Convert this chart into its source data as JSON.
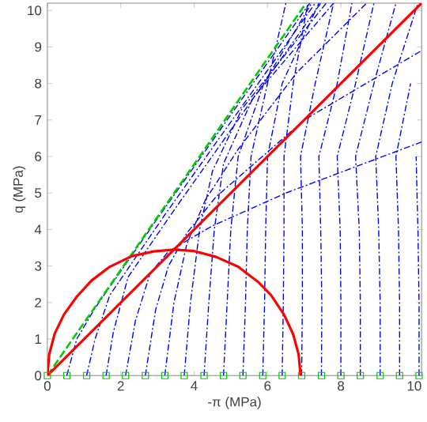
{
  "chart_data": {
    "type": "line",
    "xlabel": "-π (MPa)",
    "ylabel": "q (MPa)",
    "xlim": [
      0,
      10.2
    ],
    "ylim": [
      0,
      10.2
    ],
    "xticks": [
      0,
      2,
      4,
      6,
      8,
      10
    ],
    "yticks": [
      0,
      1,
      2,
      3,
      4,
      5,
      6,
      7,
      8,
      9,
      10
    ],
    "series": [
      {
        "color": "#0000ff",
        "line_style": "dashdot",
        "x": [
          0.53,
          0.8,
          1.3,
          3.0,
          7.15
        ],
        "values": [
          0,
          1.0,
          1.85,
          4.3,
          10.2
        ]
      },
      {
        "color": "#0000ff",
        "line_style": "dashdot",
        "x": [
          1.07,
          1.3,
          1.7,
          3.2,
          7.3
        ],
        "values": [
          0,
          1.0,
          2.2,
          4.4,
          10.2
        ]
      },
      {
        "color": "#0000ff",
        "line_style": "dashdot",
        "x": [
          1.6,
          1.8,
          2.2,
          3.5,
          7.45
        ],
        "values": [
          0,
          1.2,
          2.7,
          4.6,
          10.2
        ]
      },
      {
        "color": "#0000ff",
        "line_style": "dashdot",
        "x": [
          2.13,
          2.4,
          2.8,
          3.3,
          4.5,
          6.5,
          10.2
        ],
        "values": [
          0,
          1.5,
          2.8,
          3.4,
          4.1,
          5.0,
          6.4
        ]
      },
      {
        "color": "#0000ff",
        "line_style": "dashdot",
        "x": [
          2.67,
          2.95,
          3.3,
          3.8,
          4.6,
          7.0,
          10.2
        ],
        "values": [
          0,
          1.8,
          3.0,
          3.9,
          4.9,
          7.0,
          8.9
        ]
      },
      {
        "color": "#0000ff",
        "line_style": "dashdot",
        "x": [
          3.2,
          3.45,
          3.8,
          4.3,
          5.2,
          6.8,
          8.7
        ],
        "values": [
          0,
          2.0,
          3.6,
          4.8,
          6.2,
          8.3,
          10.2
        ]
      },
      {
        "color": "#0000ff",
        "line_style": "dashdot",
        "x": [
          3.73,
          3.9,
          4.15,
          4.5,
          5.3,
          7.6
        ],
        "values": [
          0,
          2.0,
          4.0,
          5.6,
          7.3,
          10.2
        ]
      },
      {
        "color": "#0000ff",
        "line_style": "dashdot",
        "x": [
          4.27,
          4.4,
          4.55,
          4.8,
          5.6,
          7.8
        ],
        "values": [
          0,
          2.0,
          4.0,
          5.8,
          7.6,
          10.2
        ]
      },
      {
        "color": "#0000ff",
        "line_style": "dashdot",
        "x": [
          4.8,
          4.9,
          5.0,
          5.2,
          5.9,
          7.2
        ],
        "values": [
          0,
          2.0,
          4.0,
          6.0,
          8.0,
          10.2
        ]
      },
      {
        "color": "#0000ff",
        "line_style": "dashdot",
        "x": [
          5.33,
          5.4,
          5.45,
          5.55,
          6.0,
          6.5
        ],
        "values": [
          0,
          2.0,
          4.0,
          6.0,
          8.0,
          10.2
        ]
      },
      {
        "color": "#0000ff",
        "line_style": "dashdot",
        "x": [
          5.87,
          5.92,
          5.95,
          6.0,
          6.4,
          7.4
        ],
        "values": [
          0,
          2.0,
          4.0,
          6.0,
          8.0,
          10.2
        ]
      },
      {
        "color": "#0000ff",
        "line_style": "dashdot",
        "x": [
          6.4,
          6.43,
          6.45,
          6.45,
          6.7,
          7.1
        ],
        "values": [
          0,
          2.0,
          4.0,
          6.0,
          8.0,
          10.2
        ]
      },
      {
        "color": "#0000ff",
        "line_style": "dashdot",
        "x": [
          6.93,
          6.95,
          6.95,
          6.9,
          7.3,
          7.8
        ],
        "values": [
          0,
          2.0,
          4.0,
          6.0,
          8.0,
          10.2
        ]
      },
      {
        "color": "#0000ff",
        "line_style": "dashdot",
        "x": [
          7.47,
          7.48,
          7.45,
          7.4,
          7.9,
          8.3
        ],
        "values": [
          0,
          2.0,
          4.0,
          6.0,
          8.0,
          10.2
        ]
      },
      {
        "color": "#0000ff",
        "line_style": "dashdot",
        "x": [
          8.0,
          8.0,
          7.98,
          7.9,
          8.4,
          8.9
        ],
        "values": [
          0,
          2.0,
          4.0,
          6.0,
          8.0,
          10.2
        ]
      },
      {
        "color": "#0000ff",
        "line_style": "dashdot",
        "x": [
          8.53,
          8.53,
          8.5,
          8.4,
          8.9,
          9.5
        ],
        "values": [
          0,
          2.0,
          4.0,
          6.0,
          8.0,
          10.2
        ]
      },
      {
        "color": "#0000ff",
        "line_style": "dashdot",
        "x": [
          9.07,
          9.07,
          9.03,
          8.95,
          9.4,
          10.1
        ],
        "values": [
          0,
          2.0,
          4.0,
          6.0,
          8.0,
          10.2
        ]
      },
      {
        "color": "#0000ff",
        "line_style": "dashdot",
        "x": [
          9.6,
          9.6,
          9.57,
          9.5,
          9.9
        ],
        "values": [
          0,
          2.0,
          4.0,
          6.0,
          8.0
        ]
      },
      {
        "color": "#0000ff",
        "line_style": "dashdot",
        "x": [
          10.13,
          10.13,
          10.1,
          10.05
        ],
        "values": [
          0,
          2.0,
          4.0,
          6.0
        ]
      },
      {
        "color": "#00cc00",
        "line_style": "dashed",
        "x": [
          0,
          7.05
        ],
        "values": [
          0,
          10.2
        ]
      },
      {
        "color": "#ff0000",
        "line_style": "solid",
        "x": [
          0,
          10.2
        ],
        "values": [
          0,
          10.2
        ]
      },
      {
        "color": "#ff0000",
        "line_style": "solid",
        "x": [
          0,
          0.05,
          0.2,
          0.45,
          0.8,
          1.2,
          1.7,
          2.3,
          2.9,
          3.45,
          4.0,
          4.6,
          5.2,
          5.75,
          6.1,
          6.45,
          6.7,
          6.85,
          6.9
        ],
        "values": [
          0,
          0.58,
          1.15,
          1.67,
          2.16,
          2.6,
          2.98,
          3.27,
          3.4,
          3.45,
          3.41,
          3.25,
          2.98,
          2.56,
          2.2,
          1.67,
          1.13,
          0.57,
          0
        ]
      },
      {
        "type": "scatter",
        "color": "#00cc00",
        "marker": "square",
        "x": [
          0,
          0.53,
          1.07,
          1.6,
          2.13,
          2.67,
          3.2,
          3.73,
          4.27,
          4.8,
          5.33,
          5.87,
          6.4,
          6.93,
          7.47,
          8,
          8.53,
          9.07,
          9.6,
          10.13
        ],
        "values": [
          0,
          0,
          0,
          0,
          0,
          0,
          0,
          0,
          0,
          0,
          0,
          0,
          0,
          0,
          0,
          0,
          0,
          0,
          0,
          0
        ]
      }
    ]
  }
}
